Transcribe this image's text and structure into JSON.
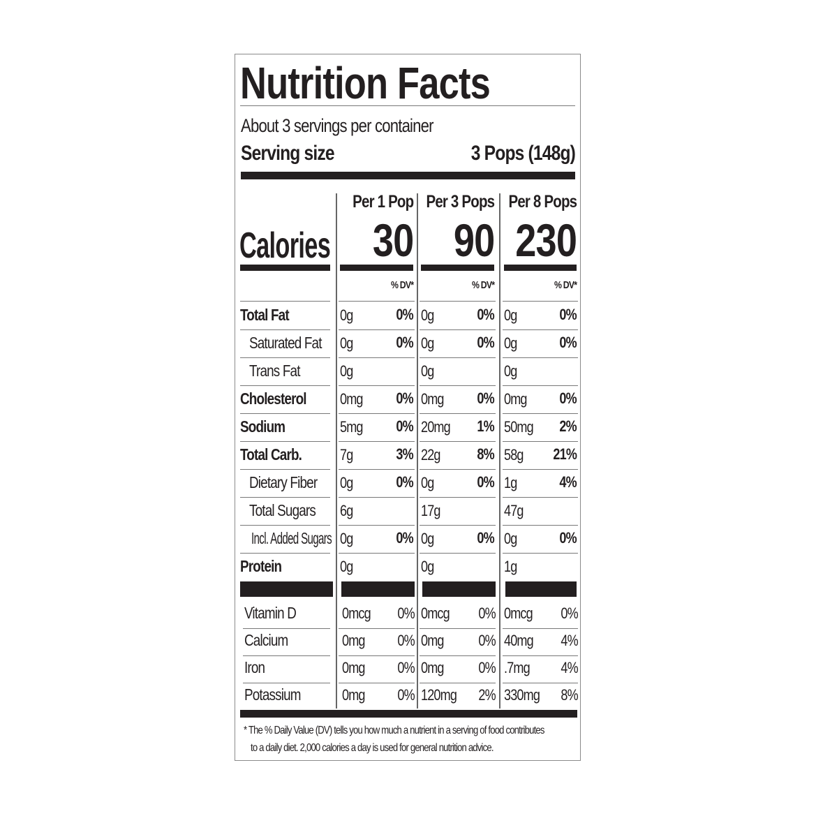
{
  "title": "Nutrition Facts",
  "servings_per_container": "About 3 servings per container",
  "serving_size_label": "Serving size",
  "serving_size_value": "3 Pops (148g)",
  "calories_label": "Calories",
  "columns": [
    {
      "header": "Per 1 Pop",
      "calories": "30",
      "dv_header": "% DV*"
    },
    {
      "header": "Per 3 Pops",
      "calories": "90",
      "dv_header": "% DV*"
    },
    {
      "header": "Per 8 Pops",
      "calories": "230",
      "dv_header": "% DV*"
    }
  ],
  "nutrients": [
    {
      "label": "Total Fat",
      "bold": true,
      "indent": 0,
      "values": [
        [
          "0g",
          "0%"
        ],
        [
          "0g",
          "0%"
        ],
        [
          "0g",
          "0%"
        ]
      ]
    },
    {
      "label": "Saturated Fat",
      "bold": false,
      "indent": 1,
      "values": [
        [
          "0g",
          "0%"
        ],
        [
          "0g",
          "0%"
        ],
        [
          "0g",
          "0%"
        ]
      ]
    },
    {
      "label": "Trans Fat",
      "bold": false,
      "indent": 1,
      "values": [
        [
          "0g",
          ""
        ],
        [
          "0g",
          ""
        ],
        [
          "0g",
          ""
        ]
      ]
    },
    {
      "label": "Cholesterol",
      "bold": true,
      "indent": 0,
      "values": [
        [
          "0mg",
          "0%"
        ],
        [
          "0mg",
          "0%"
        ],
        [
          "0mg",
          "0%"
        ]
      ]
    },
    {
      "label": "Sodium",
      "bold": true,
      "indent": 0,
      "values": [
        [
          "5mg",
          "0%"
        ],
        [
          "20mg",
          "1%"
        ],
        [
          "50mg",
          "2%"
        ]
      ]
    },
    {
      "label": "Total Carb.",
      "bold": true,
      "indent": 0,
      "values": [
        [
          "7g",
          "3%"
        ],
        [
          "22g",
          "8%"
        ],
        [
          "58g",
          "21%"
        ]
      ]
    },
    {
      "label": "Dietary Fiber",
      "bold": false,
      "indent": 1,
      "values": [
        [
          "0g",
          "0%"
        ],
        [
          "0g",
          "0%"
        ],
        [
          "1g",
          "4%"
        ]
      ]
    },
    {
      "label": "Total Sugars",
      "bold": false,
      "indent": 1,
      "values": [
        [
          "6g",
          ""
        ],
        [
          "17g",
          ""
        ],
        [
          "47g",
          ""
        ]
      ]
    },
    {
      "label": "Incl. Added Sugars",
      "bold": false,
      "indent": 2,
      "values": [
        [
          "0g",
          "0%"
        ],
        [
          "0g",
          "0%"
        ],
        [
          "0g",
          "0%"
        ]
      ]
    },
    {
      "label": "Protein",
      "bold": true,
      "indent": 0,
      "values": [
        [
          "0g",
          ""
        ],
        [
          "0g",
          ""
        ],
        [
          "1g",
          ""
        ]
      ]
    }
  ],
  "vitamins": [
    {
      "label": "Vitamin D",
      "values": [
        [
          "0mcg",
          "0%"
        ],
        [
          "0mcg",
          "0%"
        ],
        [
          "0mcg",
          "0%"
        ]
      ]
    },
    {
      "label": "Calcium",
      "values": [
        [
          "0mg",
          "0%"
        ],
        [
          "0mg",
          "0%"
        ],
        [
          "40mg",
          "4%"
        ]
      ]
    },
    {
      "label": "Iron",
      "values": [
        [
          "0mg",
          "0%"
        ],
        [
          "0mg",
          "0%"
        ],
        [
          ".7mg",
          "4%"
        ]
      ]
    },
    {
      "label": "Potassium",
      "values": [
        [
          "0mg",
          "0%"
        ],
        [
          "120mg",
          "2%"
        ],
        [
          "330mg",
          "8%"
        ]
      ]
    }
  ],
  "footnote_line1": "* The % Daily Value (DV) tells you how much a nutrient in a serving of food contributes",
  "footnote_line2": "to a daily diet. 2,000 calories a day is used for general nutrition advice."
}
